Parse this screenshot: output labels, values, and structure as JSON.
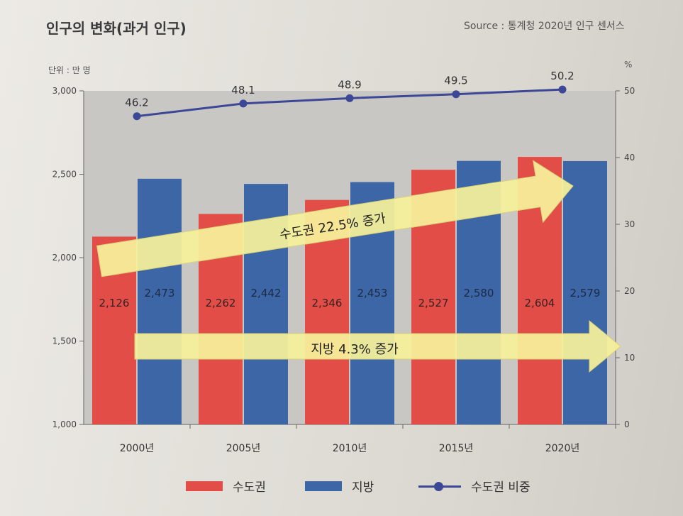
{
  "header": {
    "title": "인구의 변화(과거 인구)",
    "source": "Source : 통계청 2020년 인구 센서스",
    "unit_left": "단위 : 만 명",
    "unit_right": "%"
  },
  "colors": {
    "capital": "#e34d47",
    "regional": "#3c66a6",
    "share_line": "#3c4796",
    "arrow": "#f6f19a"
  },
  "chart_data": {
    "type": "bar",
    "categories": [
      "2000년",
      "2005년",
      "2010년",
      "2015년",
      "2020년"
    ],
    "series": [
      {
        "name": "수도권",
        "values": [
          2126,
          2262,
          2346,
          2527,
          2604
        ]
      },
      {
        "name": "지방",
        "values": [
          2473,
          2442,
          2453,
          2580,
          2579
        ]
      }
    ],
    "line_series": {
      "name": "수도권 비중",
      "values": [
        46.2,
        48.1,
        48.9,
        49.5,
        50.2
      ]
    },
    "value_labels_capital": [
      "2,126",
      "2,262",
      "2,346",
      "2,527",
      "2,604"
    ],
    "value_labels_regional": [
      "2,473",
      "2,442",
      "2,453",
      "2,580",
      "2,579"
    ],
    "line_labels": [
      "46.2",
      "48.1",
      "48.9",
      "49.5",
      "50.2"
    ],
    "ylim": [
      1000,
      3000
    ],
    "y_ticks": [
      1000,
      1500,
      2000,
      2500,
      3000
    ],
    "y_tick_labels": [
      "1,000",
      "1,500",
      "2,000",
      "2,500",
      "3,000"
    ],
    "y2lim": [
      0,
      50
    ],
    "y2_ticks": [
      0,
      10,
      20,
      30,
      40,
      50
    ],
    "y2_tick_labels": [
      "0",
      "10",
      "20",
      "30",
      "40",
      "50"
    ],
    "annotations": [
      "수도권 22.5% 증가",
      "지방 4.3% 증가"
    ],
    "legend": [
      "수도권",
      "지방",
      "수도권 비중"
    ],
    "legend_position": "bottom"
  }
}
